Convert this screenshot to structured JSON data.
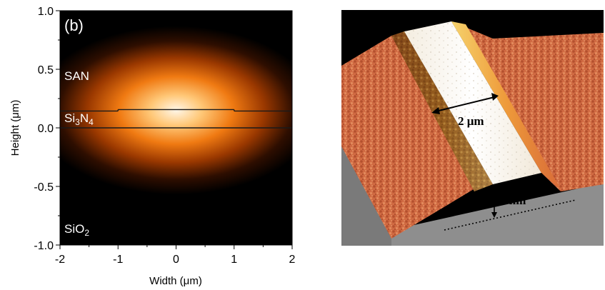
{
  "panel_b": {
    "panel_label": "(b)",
    "regions": {
      "top": "SAN",
      "core_base": "Si",
      "core_sub1": "3",
      "core_mid": "N",
      "core_sub2": "4",
      "bottom_base": "SiO",
      "bottom_sub": "2"
    }
  },
  "chart_data": {
    "type": "heatmap",
    "title": "",
    "xlabel": "Width (μm)",
    "ylabel": "Height (μm)",
    "xlim": [
      -2,
      2
    ],
    "ylim": [
      -1.0,
      1.0
    ],
    "x_ticks": [
      "-2",
      "-1",
      "0",
      "1",
      "2"
    ],
    "x_tick_values": [
      -2,
      -1,
      0,
      1,
      2
    ],
    "y_ticks": [
      "1.0",
      "0.5",
      "0.0",
      "-0.5",
      "-1.0"
    ],
    "y_tick_values": [
      1.0,
      0.5,
      0.0,
      -0.5,
      -1.0
    ],
    "layer_boundaries_um": [
      0.0,
      0.15
    ],
    "ridge_width_um": [
      -1,
      1
    ],
    "mode_center": [
      0,
      0.15
    ],
    "colormap": [
      "#000000",
      "#3a1200",
      "#a23c00",
      "#f07a10",
      "#ffc070",
      "#fff6e8"
    ]
  },
  "afm": {
    "width_label": "2 μm",
    "height_label": "5 nm"
  }
}
